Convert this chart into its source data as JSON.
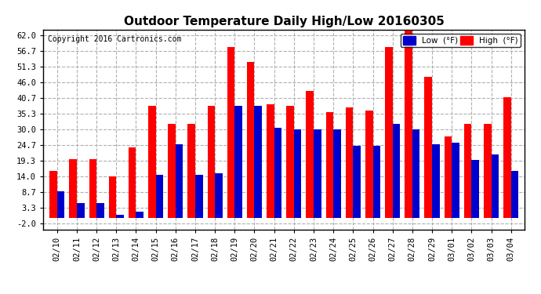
{
  "title": "Outdoor Temperature Daily High/Low 20160305",
  "copyright": "Copyright 2016 Cartronics.com",
  "dates": [
    "02/10",
    "02/11",
    "02/12",
    "02/13",
    "02/14",
    "02/15",
    "02/16",
    "02/17",
    "02/18",
    "02/19",
    "02/20",
    "02/21",
    "02/22",
    "02/23",
    "02/24",
    "02/25",
    "02/26",
    "02/27",
    "02/28",
    "02/29",
    "03/01",
    "03/02",
    "03/03",
    "03/04"
  ],
  "highs": [
    16.0,
    20.0,
    20.0,
    14.0,
    24.0,
    38.0,
    32.0,
    32.0,
    38.0,
    58.0,
    53.0,
    38.5,
    38.0,
    43.0,
    36.0,
    37.5,
    36.5,
    58.0,
    63.5,
    48.0,
    27.5,
    32.0,
    32.0,
    41.0
  ],
  "lows": [
    9.0,
    5.0,
    5.0,
    1.0,
    2.0,
    14.5,
    25.0,
    14.5,
    15.0,
    38.0,
    38.0,
    30.5,
    30.0,
    30.0,
    30.0,
    24.5,
    24.5,
    32.0,
    30.0,
    25.0,
    25.5,
    19.5,
    21.5,
    16.0
  ],
  "high_color": "#ff0000",
  "low_color": "#0000cc",
  "background_color": "#ffffff",
  "grid_color": "#b0b0b0",
  "title_fontsize": 11,
  "yticks": [
    -2.0,
    3.3,
    8.7,
    14.0,
    19.3,
    24.7,
    30.0,
    35.3,
    40.7,
    46.0,
    51.3,
    56.7,
    62.0
  ],
  "ylim": [
    -4.0,
    64.0
  ],
  "bar_width": 0.38
}
